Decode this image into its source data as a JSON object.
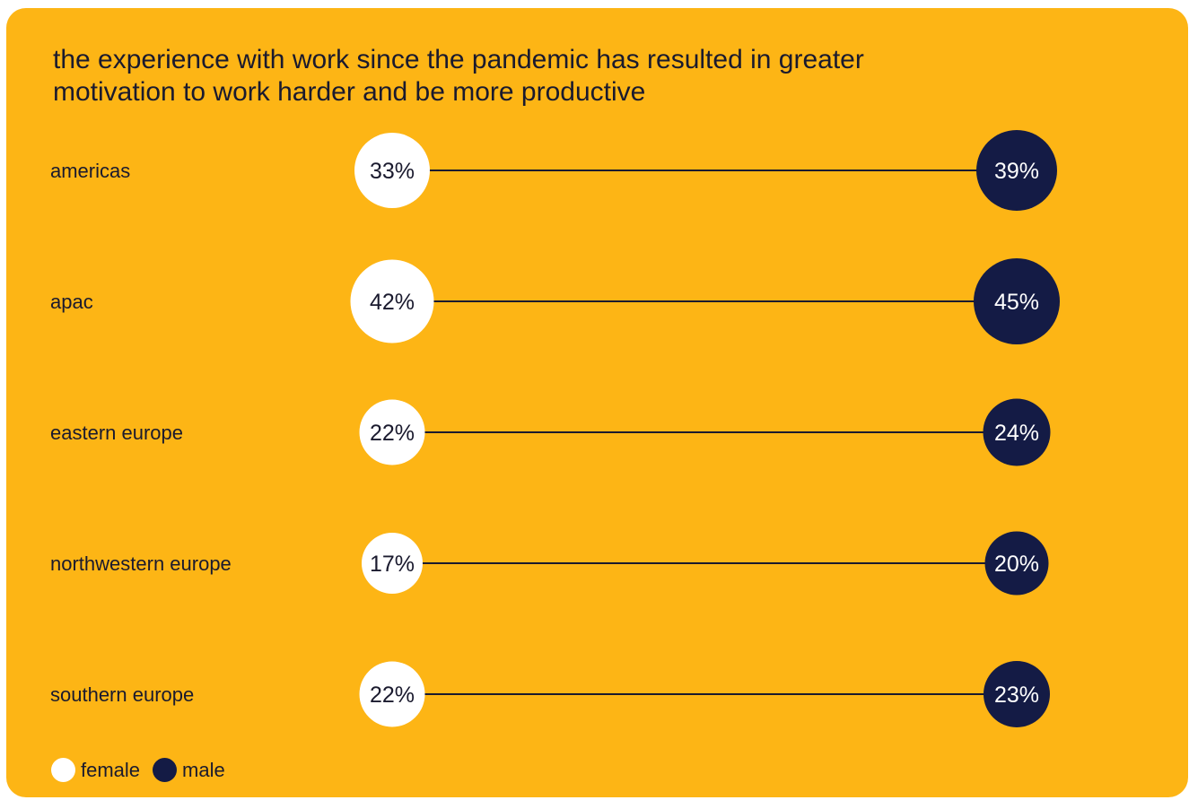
{
  "chart_data": {
    "type": "dumbbell",
    "title": "the experience with work since the pandemic has resulted in greater motivation to work harder and be more productive",
    "categories": [
      "americas",
      "apac",
      "eastern europe",
      "northwestern europe",
      "southern europe"
    ],
    "series": [
      {
        "name": "female",
        "color": "#FFFFFF",
        "values": [
          33,
          42,
          22,
          17,
          22
        ],
        "labels": [
          "33%",
          "42%",
          "22%",
          "17%",
          "22%"
        ]
      },
      {
        "name": "male",
        "color": "#141B45",
        "values": [
          39,
          45,
          24,
          20,
          23
        ],
        "labels": [
          "39%",
          "45%",
          "24%",
          "20%",
          "23%"
        ]
      }
    ],
    "legend_position": "bottom-left",
    "grid": false
  }
}
